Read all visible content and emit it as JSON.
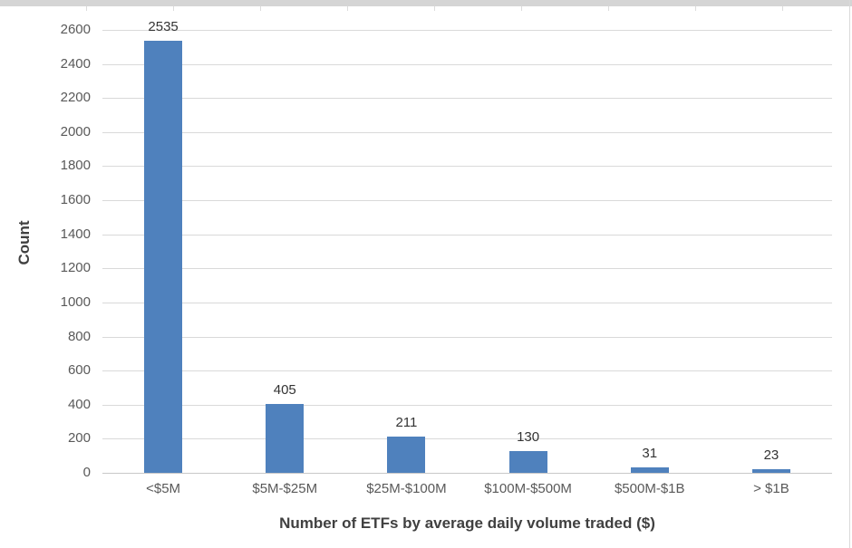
{
  "chart_data": {
    "type": "bar",
    "title": "",
    "categories": [
      "<$5M",
      "$5M-$25M",
      "$25M-$100M",
      "$100M-$500M",
      "$500M-$1B",
      "> $1B"
    ],
    "values": [
      2535,
      405,
      211,
      130,
      31,
      23
    ],
    "xlabel": "Number of ETFs by average daily volume traded ($)",
    "ylabel": "Count",
    "ylim": [
      0,
      2600
    ],
    "ytick_step": 200,
    "ytick_labels": [
      "0",
      "200",
      "400",
      "600",
      "800",
      "1000",
      "1200",
      "1400",
      "1600",
      "1800",
      "2000",
      "2200",
      "2400",
      "2600"
    ],
    "grid": true,
    "legend": false,
    "colors": {
      "bar": "#4f81bd",
      "gridline": "#d9d9d9",
      "axis_line": "#c8c8c8",
      "tick_label": "#595959",
      "data_label": "#333333",
      "axis_title": "#404040",
      "chart_border": "#d9d9d9",
      "top_strip": "#d5d5d5"
    }
  }
}
